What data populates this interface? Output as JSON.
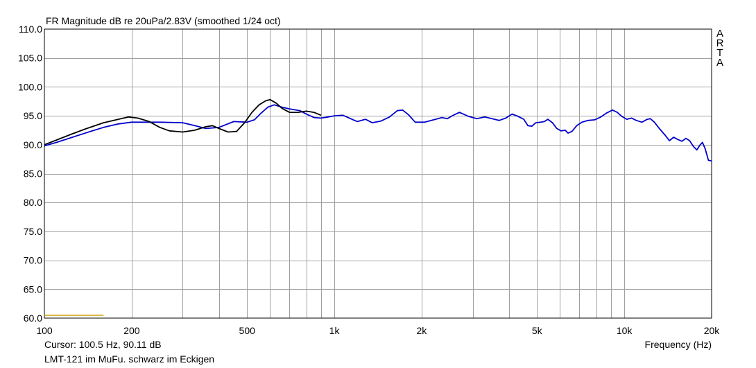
{
  "header": {
    "title": "FR Magnitude dB re 20uPa/2.83V (smoothed 1/24 oct)"
  },
  "side_label": [
    "A",
    "R",
    "T",
    "A"
  ],
  "footer": {
    "cursor": "Cursor: 100.5 Hz, 90.11 dB",
    "xlabel": "Frequency (Hz)",
    "caption": "LMT-121 im MuFu.   schwarz im Eckigen"
  },
  "chart_data": {
    "type": "line",
    "title": "FR Magnitude dB re 20uPa/2.83V (smoothed 1/24 oct)",
    "xlabel": "Frequency (Hz)",
    "ylabel": "",
    "x_scale": "log",
    "xlim": [
      100,
      20000
    ],
    "ylim": [
      60,
      110
    ],
    "grid": true,
    "y_ticks": [
      60,
      65,
      70,
      75,
      80,
      85,
      90,
      95,
      100,
      105,
      110
    ],
    "y_tick_labels": [
      "60.0",
      "65.0",
      "70.0",
      "75.0",
      "80.0",
      "85.0",
      "90.0",
      "95.0",
      "100.0",
      "105.0",
      "110.0"
    ],
    "x_ticks": [
      100,
      200,
      500,
      1000,
      2000,
      5000,
      10000,
      20000
    ],
    "x_tick_labels": [
      "100",
      "200",
      "500",
      "1k",
      "2k",
      "5k",
      "10k",
      "20k"
    ],
    "series": [
      {
        "color": "#0000cc",
        "points": [
          [
            100,
            89.8
          ],
          [
            110,
            90.4
          ],
          [
            125,
            91.3
          ],
          [
            140,
            92.1
          ],
          [
            160,
            93.0
          ],
          [
            180,
            93.6
          ],
          [
            200,
            93.9
          ],
          [
            250,
            93.9
          ],
          [
            300,
            93.8
          ],
          [
            330,
            93.3
          ],
          [
            360,
            92.8
          ],
          [
            400,
            93.0
          ],
          [
            450,
            94.0
          ],
          [
            500,
            93.9
          ],
          [
            530,
            94.3
          ],
          [
            560,
            95.5
          ],
          [
            590,
            96.5
          ],
          [
            620,
            96.9
          ],
          [
            660,
            96.5
          ],
          [
            700,
            96.2
          ],
          [
            760,
            95.9
          ],
          [
            800,
            95.3
          ],
          [
            850,
            94.7
          ],
          [
            900,
            94.6
          ],
          [
            950,
            94.8
          ],
          [
            1000,
            95.0
          ],
          [
            1070,
            95.1
          ],
          [
            1150,
            94.4
          ],
          [
            1200,
            94.0
          ],
          [
            1280,
            94.4
          ],
          [
            1350,
            93.8
          ],
          [
            1450,
            94.1
          ],
          [
            1550,
            94.8
          ],
          [
            1650,
            95.9
          ],
          [
            1720,
            96.0
          ],
          [
            1800,
            95.2
          ],
          [
            1900,
            93.9
          ],
          [
            2050,
            93.9
          ],
          [
            2200,
            94.3
          ],
          [
            2350,
            94.7
          ],
          [
            2450,
            94.5
          ],
          [
            2550,
            95.0
          ],
          [
            2700,
            95.6
          ],
          [
            2900,
            94.9
          ],
          [
            3100,
            94.5
          ],
          [
            3300,
            94.8
          ],
          [
            3500,
            94.5
          ],
          [
            3700,
            94.2
          ],
          [
            3900,
            94.6
          ],
          [
            4100,
            95.3
          ],
          [
            4300,
            94.9
          ],
          [
            4500,
            94.4
          ],
          [
            4650,
            93.3
          ],
          [
            4800,
            93.2
          ],
          [
            4950,
            93.8
          ],
          [
            5150,
            93.9
          ],
          [
            5300,
            94.0
          ],
          [
            5450,
            94.4
          ],
          [
            5650,
            93.8
          ],
          [
            5850,
            92.8
          ],
          [
            6050,
            92.4
          ],
          [
            6250,
            92.5
          ],
          [
            6400,
            92.0
          ],
          [
            6600,
            92.3
          ],
          [
            6850,
            93.3
          ],
          [
            7150,
            93.9
          ],
          [
            7500,
            94.2
          ],
          [
            7900,
            94.3
          ],
          [
            8300,
            94.8
          ],
          [
            8700,
            95.5
          ],
          [
            9100,
            96.0
          ],
          [
            9450,
            95.6
          ],
          [
            9800,
            94.9
          ],
          [
            10200,
            94.4
          ],
          [
            10600,
            94.6
          ],
          [
            11000,
            94.2
          ],
          [
            11500,
            93.9
          ],
          [
            12000,
            94.4
          ],
          [
            12300,
            94.5
          ],
          [
            12700,
            93.9
          ],
          [
            13200,
            92.8
          ],
          [
            13800,
            91.7
          ],
          [
            14300,
            90.7
          ],
          [
            14800,
            91.3
          ],
          [
            15300,
            90.9
          ],
          [
            15800,
            90.6
          ],
          [
            16300,
            91.1
          ],
          [
            16800,
            90.7
          ],
          [
            17300,
            89.7
          ],
          [
            17800,
            89.1
          ],
          [
            18200,
            89.9
          ],
          [
            18600,
            90.4
          ],
          [
            19000,
            89.3
          ],
          [
            19500,
            87.3
          ],
          [
            20000,
            87.2
          ]
        ]
      },
      {
        "color": "#000000",
        "points": [
          [
            100,
            90.0
          ],
          [
            110,
            90.8
          ],
          [
            125,
            91.9
          ],
          [
            140,
            92.8
          ],
          [
            160,
            93.8
          ],
          [
            180,
            94.4
          ],
          [
            195,
            94.8
          ],
          [
            210,
            94.6
          ],
          [
            230,
            94.0
          ],
          [
            250,
            93.0
          ],
          [
            270,
            92.4
          ],
          [
            300,
            92.2
          ],
          [
            330,
            92.5
          ],
          [
            360,
            93.1
          ],
          [
            380,
            93.3
          ],
          [
            400,
            92.8
          ],
          [
            430,
            92.2
          ],
          [
            460,
            92.3
          ],
          [
            490,
            93.8
          ],
          [
            520,
            95.6
          ],
          [
            550,
            96.9
          ],
          [
            580,
            97.6
          ],
          [
            600,
            97.8
          ],
          [
            630,
            97.2
          ],
          [
            660,
            96.3
          ],
          [
            700,
            95.6
          ],
          [
            750,
            95.6
          ],
          [
            800,
            95.8
          ],
          [
            850,
            95.6
          ],
          [
            900,
            95.1
          ]
        ]
      }
    ],
    "markers": [
      {
        "kind": "hline",
        "color": "#c8a000",
        "y": 60.5,
        "x_range": [
          100,
          160
        ]
      }
    ]
  }
}
